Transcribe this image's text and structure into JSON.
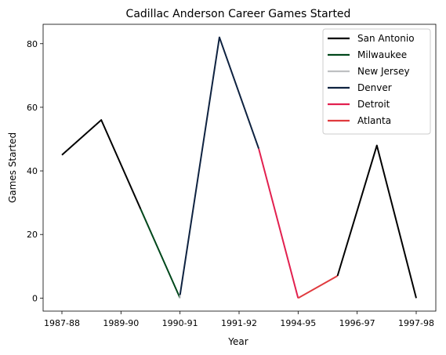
{
  "chart_data": {
    "type": "line",
    "title": "Cadillac Anderson Career Games Started",
    "xlabel": "Year",
    "ylabel": "Games Started",
    "x_tick_labels": [
      "1987-88",
      "1989-90",
      "1990-91",
      "1991-92",
      "1994-95",
      "1996-97",
      "1997-98"
    ],
    "y_ticks": [
      0,
      20,
      40,
      60,
      80
    ],
    "ylim": [
      -4.1,
      86.1
    ],
    "xlim": [
      -0.3,
      6.3
    ],
    "grid": false,
    "legend_position": "top-right",
    "series": [
      {
        "name": "San Antonio",
        "color": "#000000",
        "points": [
          [
            0,
            45
          ],
          [
            1,
            56
          ],
          [
            2,
            28
          ]
        ]
      },
      {
        "name": "Milwaukee",
        "color": "#00471b",
        "points": [
          [
            2,
            28
          ],
          [
            3,
            0
          ]
        ]
      },
      {
        "name": "New Jersey",
        "color": "#bec0c2",
        "points": [
          [
            3,
            0
          ],
          [
            3,
            1
          ]
        ]
      },
      {
        "name": "Denver",
        "color": "#0e2240",
        "points": [
          [
            3,
            1
          ],
          [
            4,
            82
          ],
          [
            5,
            47
          ]
        ]
      },
      {
        "name": "Detroit",
        "color": "#e2204f",
        "points": [
          [
            5,
            47
          ],
          [
            6,
            0
          ]
        ]
      },
      {
        "name": "Atlanta",
        "color": "#e03a3e",
        "points": [
          [
            6,
            0
          ],
          [
            7,
            7
          ]
        ]
      },
      {
        "name": "San Antonio",
        "color": "#000000",
        "points": [
          [
            7,
            7
          ],
          [
            8,
            48
          ],
          [
            9,
            0
          ]
        ]
      }
    ],
    "series_x_span": [
      0,
      9
    ],
    "tick_positions_in_span": [
      0,
      1.5,
      3,
      4.5,
      6,
      7.5,
      9
    ]
  }
}
